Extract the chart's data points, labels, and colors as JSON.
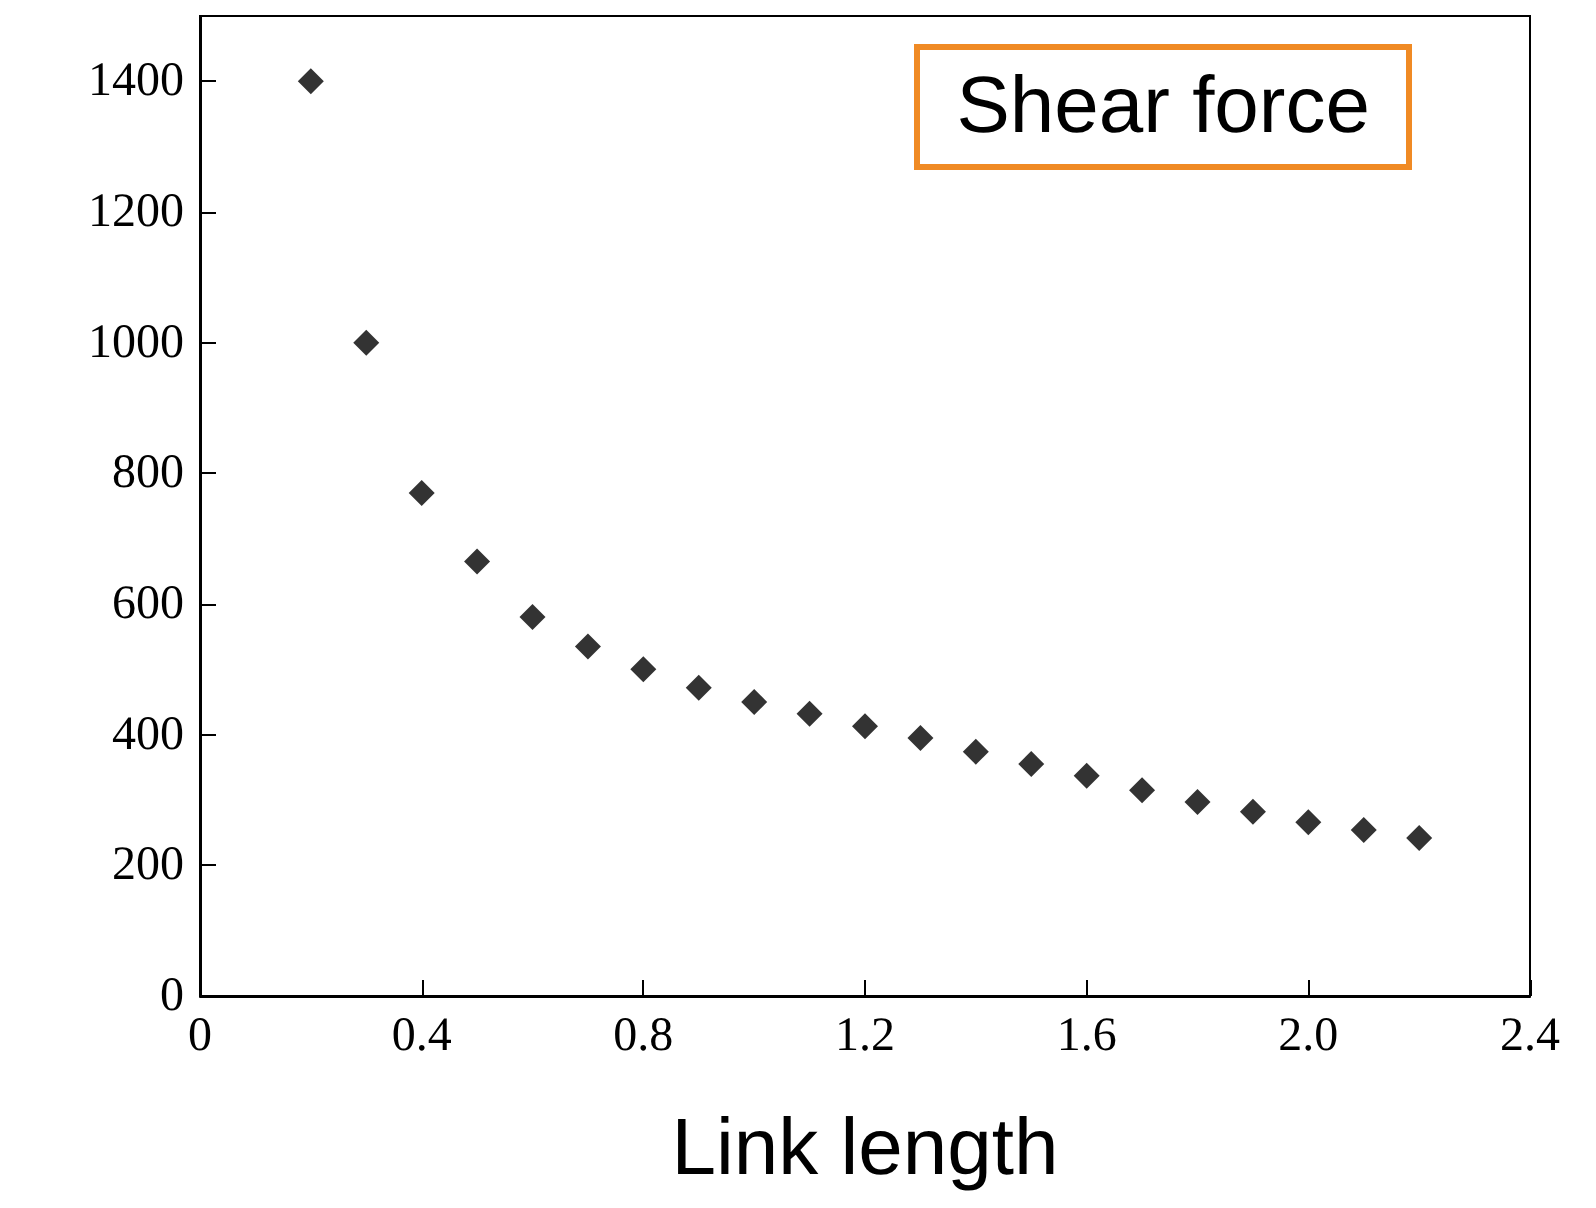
{
  "chart_data": {
    "type": "scatter",
    "xlabel": "Link length",
    "annotations": [
      "Shear force"
    ],
    "x": [
      0.2,
      0.3,
      0.4,
      0.5,
      0.6,
      0.7,
      0.8,
      0.9,
      1.0,
      1.1,
      1.2,
      1.3,
      1.4,
      1.5,
      1.6,
      1.7,
      1.8,
      1.9,
      2.0,
      2.1,
      2.2
    ],
    "series": [
      {
        "color": "#000000",
        "values": [
          1400,
          1000,
          770,
          665,
          580,
          535,
          500,
          472,
          450,
          432,
          413,
          395,
          374,
          355,
          337,
          315,
          297,
          282,
          266,
          254,
          242
        ]
      }
    ],
    "xlim": [
      0,
      2.4
    ],
    "xticks": [
      0,
      0.4,
      0.8,
      1.2,
      1.6,
      {
        "value": 2.0,
        "label": "2.0"
      },
      2.4
    ],
    "ylim": [
      0,
      1500
    ],
    "yticks": [
      0,
      200,
      400,
      600,
      800,
      1000,
      1200,
      1400
    ],
    "marker": "diamond",
    "grid": false
  }
}
